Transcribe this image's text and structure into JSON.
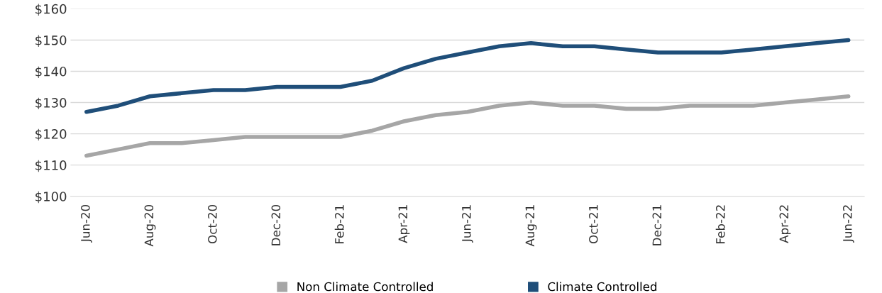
{
  "chart_data": {
    "type": "line",
    "categories": [
      "Jun-20",
      null,
      "Aug-20",
      null,
      "Oct-20",
      null,
      "Dec-20",
      null,
      "Feb-21",
      null,
      "Apr-21",
      null,
      "Jun-21",
      null,
      "Aug-21",
      null,
      "Oct-21",
      null,
      "Dec-21",
      null,
      "Feb-22",
      null,
      "Apr-22",
      null,
      "Jun-22"
    ],
    "series": [
      {
        "name": "Non Climate Controlled",
        "color": "#a6a6a6",
        "values": [
          113,
          115,
          117,
          117,
          118,
          119,
          119,
          119,
          119,
          121,
          124,
          126,
          127,
          129,
          130,
          129,
          129,
          128,
          128,
          129,
          129,
          129,
          130,
          131,
          132
        ]
      },
      {
        "name": "Climate Controlled",
        "color": "#1f4e79",
        "values": [
          127,
          129,
          132,
          133,
          134,
          134,
          135,
          135,
          135,
          137,
          141,
          144,
          146,
          148,
          149,
          148,
          148,
          147,
          146,
          146,
          146,
          147,
          148,
          149,
          150
        ]
      }
    ],
    "ylim": [
      100,
      160
    ],
    "yticks": [
      {
        "value": 100,
        "label": "$100"
      },
      {
        "value": 110,
        "label": "$110"
      },
      {
        "value": 120,
        "label": "$120"
      },
      {
        "value": 130,
        "label": "$130"
      },
      {
        "value": 140,
        "label": "$140"
      },
      {
        "value": 150,
        "label": "$150"
      },
      {
        "value": 160,
        "label": "$160"
      }
    ],
    "grid": "y",
    "legend": "bottom",
    "marker": "none",
    "line_style": "solid"
  }
}
